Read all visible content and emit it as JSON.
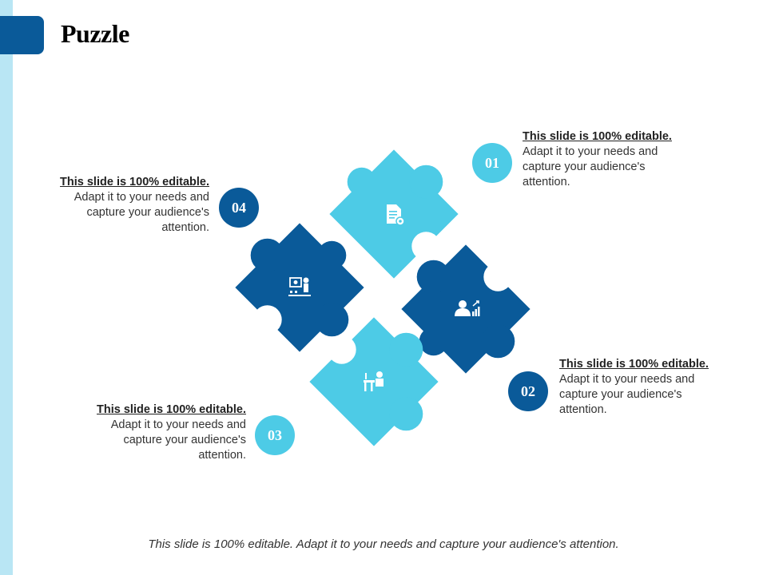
{
  "title": "Puzzle",
  "items": [
    {
      "number": "01",
      "heading": "This slide is 100% editable.",
      "body": "Adapt it to your needs and capture your audience's attention.",
      "icon": "document-gear-icon"
    },
    {
      "number": "02",
      "heading": "This slide is 100% editable.",
      "body": "Adapt it to your needs and capture your audience's attention.",
      "icon": "businessman-growth-icon"
    },
    {
      "number": "03",
      "heading": "This slide is 100% editable.",
      "body": "Adapt it to your needs and capture your audience's attention.",
      "icon": "person-at-desk-icon"
    },
    {
      "number": "04",
      "heading": "This slide is 100% editable.",
      "body": "Adapt it to your needs and capture your audience's attention.",
      "icon": "presentation-icon"
    }
  ],
  "footer": "This slide is 100% editable. Adapt it to your needs and capture your audience's attention.",
  "colors": {
    "light": "#4dcbe6",
    "dark": "#0a5a99",
    "band": "#b9e6f4"
  }
}
